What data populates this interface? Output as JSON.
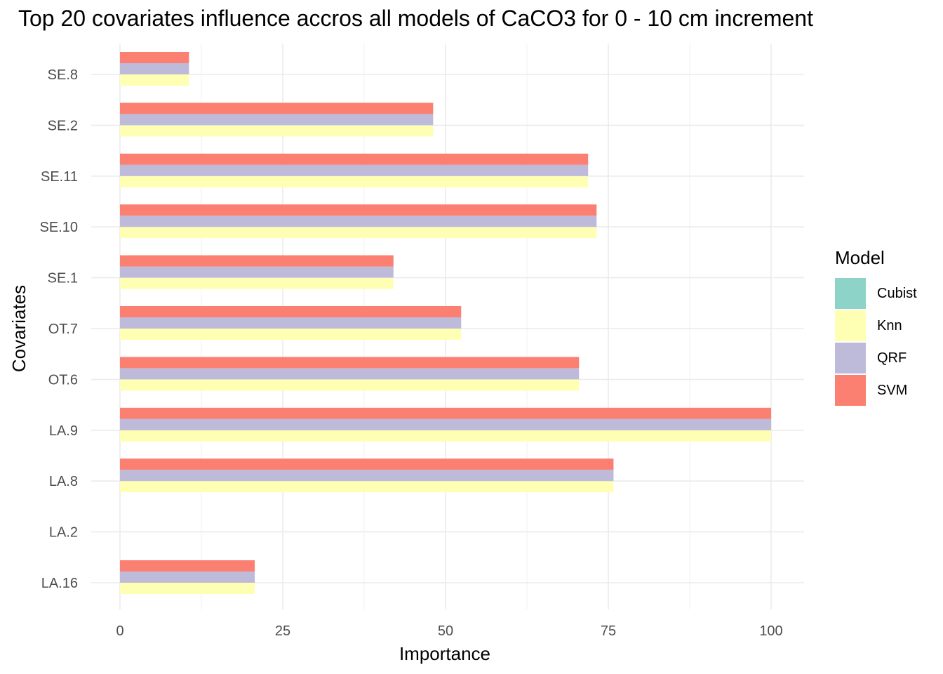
{
  "chart_data": {
    "type": "bar",
    "orientation": "horizontal",
    "title": "Top 20 covariates influence accros all models of CaCO3 for 0 - 10 cm increment",
    "xlabel": "Importance",
    "ylabel": "Covariates",
    "xlim": [
      0,
      100
    ],
    "x_ticks": [
      "0",
      "25",
      "50",
      "75",
      "100"
    ],
    "grid": true,
    "legend_position": "right",
    "legend_title": "Model",
    "categories": [
      "SE.8",
      "SE.2",
      "SE.11",
      "SE.10",
      "SE.1",
      "OT.7",
      "OT.6",
      "LA.9",
      "LA.8",
      "LA.2",
      "LA.16"
    ],
    "series": [
      {
        "name": "Cubist",
        "color": "#8DD3C7",
        "values": [
          null,
          null,
          null,
          null,
          null,
          null,
          null,
          null,
          null,
          null,
          null
        ]
      },
      {
        "name": "Knn",
        "color": "#FFFFB3",
        "values": [
          10.6,
          48.1,
          71.9,
          73.2,
          42.0,
          52.4,
          70.5,
          100,
          75.8,
          null,
          20.7
        ]
      },
      {
        "name": "QRF",
        "color": "#BEBADA",
        "values": [
          10.6,
          48.1,
          71.9,
          73.2,
          42.0,
          52.4,
          70.5,
          100,
          75.8,
          null,
          20.7
        ]
      },
      {
        "name": "SVM",
        "color": "#FB8072",
        "values": [
          10.6,
          48.1,
          71.9,
          73.2,
          42.0,
          52.4,
          70.5,
          100,
          75.8,
          null,
          20.7
        ]
      }
    ]
  }
}
